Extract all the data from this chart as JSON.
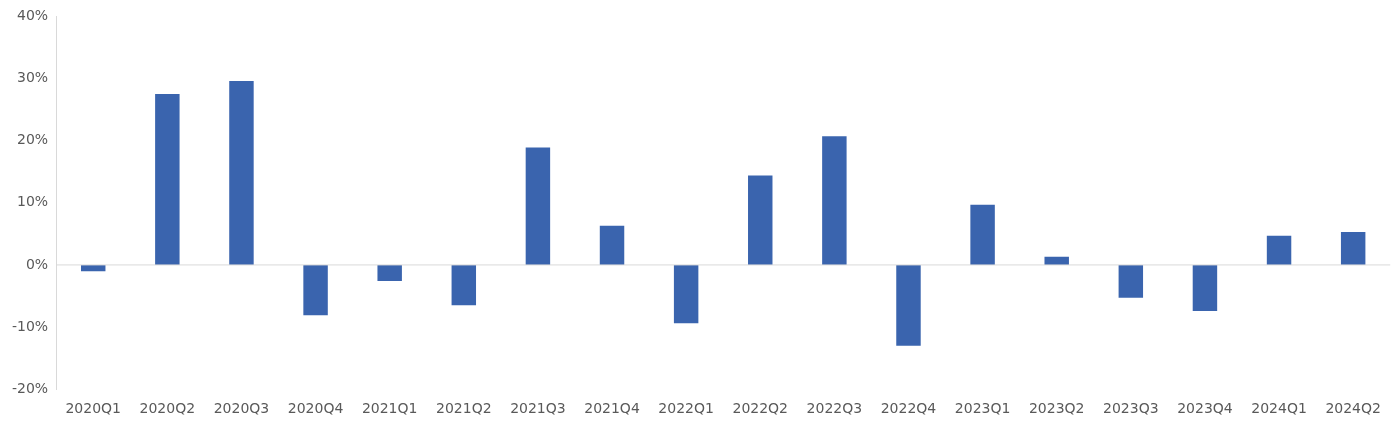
{
  "chart_data": {
    "type": "bar",
    "categories": [
      "2020Q1",
      "2020Q2",
      "2020Q3",
      "2020Q4",
      "2021Q1",
      "2021Q2",
      "2021Q3",
      "2021Q4",
      "2022Q1",
      "2022Q2",
      "2022Q3",
      "2022Q4",
      "2023Q1",
      "2023Q2",
      "2023Q3",
      "2023Q4",
      "2024Q1",
      "2024Q2"
    ],
    "values": [
      -1.0,
      27.5,
      29.6,
      -8.1,
      -2.6,
      -6.5,
      18.9,
      6.3,
      -9.4,
      14.4,
      20.7,
      -13.0,
      9.7,
      1.3,
      -5.3,
      -7.4,
      4.7,
      5.3
    ],
    "color": "#3a64ae",
    "ylim": [
      -20,
      40
    ],
    "yticks": [
      {
        "value": -20,
        "label": "-20%"
      },
      {
        "value": -10,
        "label": "-10%"
      },
      {
        "value": 0,
        "label": "0%"
      },
      {
        "value": 10,
        "label": "10%"
      },
      {
        "value": 20,
        "label": "20%"
      },
      {
        "value": 30,
        "label": "30%"
      },
      {
        "value": 40,
        "label": "40%"
      }
    ],
    "grid": false,
    "ref_lines": [
      {
        "axis": "y",
        "value": 0,
        "color": "#d9d9d9"
      }
    ],
    "legend": false
  }
}
